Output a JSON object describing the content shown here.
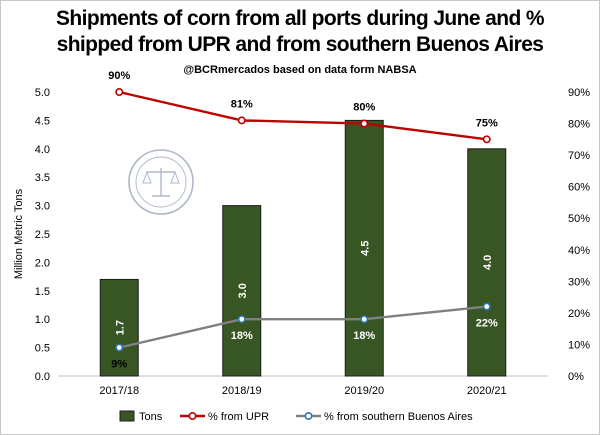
{
  "chart_data": {
    "type": "bar",
    "title": "Shipments of corn from all ports during June and % shipped from UPR and from southern Buenos Aires",
    "title_lines": [
      "Shipments of corn from all ports during June and %",
      "shipped from UPR and from southern Buenos Aires"
    ],
    "subtitle": "@BCRmercados based on data form NABSA",
    "ylabel": "Million Metric Tons",
    "xlabel": "",
    "categories": [
      "2017/18",
      "2018/19",
      "2019/20",
      "2020/21"
    ],
    "ylim": [
      0,
      5
    ],
    "y_ticks": [
      "0.0",
      "0.5",
      "1.0",
      "1.5",
      "2.0",
      "2.5",
      "3.0",
      "3.5",
      "4.0",
      "4.5",
      "5.0"
    ],
    "y2lim": [
      0,
      90
    ],
    "y2_ticks": [
      "0%",
      "10%",
      "20%",
      "30%",
      "40%",
      "50%",
      "60%",
      "70%",
      "80%",
      "90%"
    ],
    "series": [
      {
        "name": "Tons",
        "kind": "bar",
        "axis": "left",
        "color": "#375623",
        "values": [
          1.7,
          3.0,
          4.5,
          4.0
        ],
        "labels": [
          "1.7",
          "3.0",
          "4.5",
          "4.0"
        ]
      },
      {
        "name": "% from UPR",
        "kind": "line",
        "axis": "right",
        "color": "#c00000",
        "values": [
          90,
          81,
          80,
          75
        ],
        "labels": [
          "90%",
          "81%",
          "80%",
          "75%"
        ]
      },
      {
        "name": "% from southern Buenos Aires",
        "kind": "line",
        "axis": "right",
        "color": "#808080",
        "marker_color": "#2e75b6",
        "values": [
          9,
          18,
          18,
          22
        ],
        "labels": [
          "9%",
          "18%",
          "18%",
          "22%"
        ]
      }
    ],
    "legend_position": "bottom",
    "grid": false
  },
  "watermark": {
    "name": "seal-logo",
    "text": "BOLSA DE COMERCIO DE ROSARIO"
  }
}
